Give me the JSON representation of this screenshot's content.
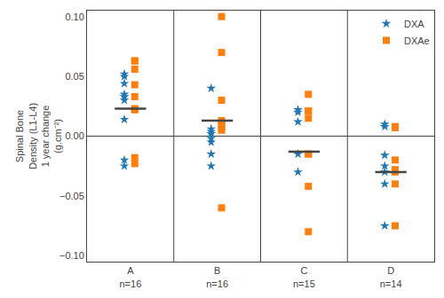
{
  "chart_data": {
    "type": "scatter",
    "categories": [
      "A\nn=16",
      "B\nn=16",
      "C\nn=15",
      "D\nn=14"
    ],
    "y_label": "Spinal Bone\nDensity (L1-L4)\n1 year change\n(g.cm⁻²)",
    "series": [
      {
        "name": "DXA",
        "marker": "star",
        "values": [
          [
            0.052,
            0.05,
            0.044,
            0.035,
            0.033,
            0.03,
            0.014,
            -0.02,
            -0.025
          ],
          [
            0.04,
            0.006,
            0.004,
            0.002,
            -0.002,
            -0.005,
            -0.015,
            -0.025
          ],
          [
            0.022,
            0.02,
            0.012,
            -0.015,
            -0.03
          ],
          [
            0.01,
            0.008,
            -0.016,
            -0.025,
            -0.03,
            -0.04,
            -0.075
          ]
        ]
      },
      {
        "name": "DXAe",
        "marker": "square",
        "values": [
          [
            0.063,
            0.063,
            0.056,
            0.043,
            0.033,
            0.023,
            0.022,
            -0.018,
            -0.023
          ],
          [
            0.1,
            0.07,
            0.03,
            0.013,
            0.01,
            0.008,
            0.005,
            -0.06
          ],
          [
            0.035,
            0.021,
            0.021,
            0.015,
            -0.015,
            -0.015,
            -0.042,
            -0.08
          ],
          [
            0.008,
            0.007,
            -0.02,
            -0.028,
            -0.03,
            -0.04,
            -0.075
          ]
        ]
      }
    ],
    "means": [
      0.023,
      0.013,
      -0.013,
      -0.03
    ],
    "ylim": [
      -0.105,
      0.105
    ],
    "yticks": [
      {
        "value": -0.1,
        "label": "−0.10"
      },
      {
        "value": -0.05,
        "label": "−0.05"
      },
      {
        "value": 0,
        "label": "0.00"
      },
      {
        "value": 0.05,
        "label": "0.05"
      },
      {
        "value": 0.1,
        "label": "0.10"
      }
    ],
    "grid": false,
    "legend": "upper right"
  }
}
